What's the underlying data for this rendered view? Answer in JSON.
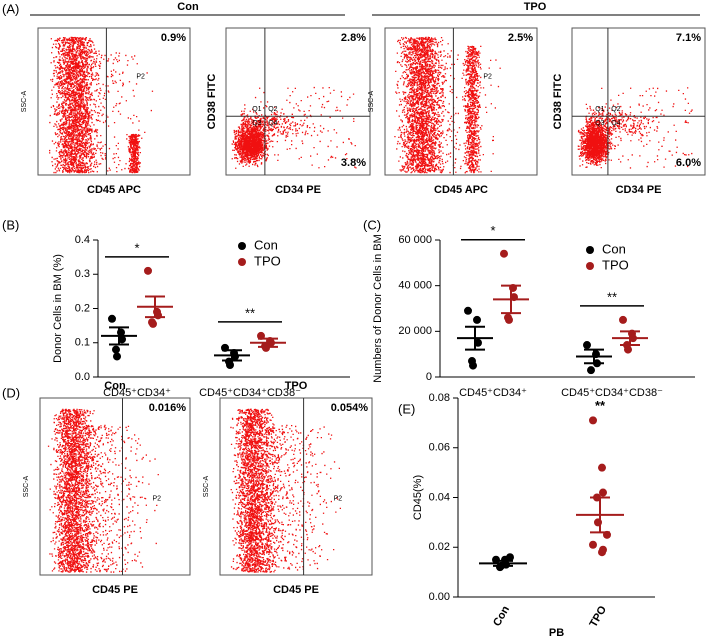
{
  "panel_labels": [
    "(A)",
    "(B)",
    "(C)",
    "(D)",
    "(E)"
  ],
  "panel_a": {
    "groups": [
      "Con",
      "TPO"
    ],
    "plots": [
      {
        "x_label": "CD45 APC",
        "y_label": "SSC-A",
        "gate": "P2",
        "percents": [
          "0.9%"
        ]
      },
      {
        "x_label": "CD34 PE",
        "y_label": "CD38 FITC",
        "quadrants": [
          "Q1",
          "Q2",
          "Q3",
          "Q4"
        ],
        "percents": [
          "2.8%",
          "3.8%"
        ]
      },
      {
        "x_label": "CD45 APC",
        "y_label": "SSC-A",
        "gate": "P2",
        "percents": [
          "2.5%"
        ]
      },
      {
        "x_label": "CD34 PE",
        "y_label": "CD38 FITC",
        "quadrants": [
          "Q1",
          "Q2",
          "Q3",
          "Q4"
        ],
        "percents": [
          "7.1%",
          "6.0%"
        ]
      }
    ]
  },
  "panel_d": {
    "plots": [
      {
        "title": "Con",
        "x_label": "CD45 PE",
        "y_label": "SSC-A",
        "gate": "P2",
        "percents": [
          "0.016%"
        ]
      },
      {
        "title": "TPO",
        "x_label": "CD45 PE",
        "y_label": "SSC-A",
        "gate": "P2",
        "percents": [
          "0.054%"
        ]
      }
    ]
  },
  "chart_data": [
    {
      "type": "dot",
      "y_label": "Donor Cells in BM (%)",
      "categories": [
        "CD45⁺CD34⁺",
        "CD45⁺CD34⁺CD38⁻"
      ],
      "series": [
        {
          "name": "Con",
          "color": "#000000",
          "values": [
            0.12,
            0.063
          ],
          "errors": [
            0.025,
            0.015
          ],
          "points": [
            [
              0.17,
              0.13,
              0.11,
              0.08,
              0.06
            ],
            [
              0.085,
              0.07,
              0.06,
              0.045,
              0.035
            ]
          ]
        },
        {
          "name": "TPO",
          "color": "#a51c1c",
          "values": [
            0.205,
            0.1
          ],
          "errors": [
            0.03,
            0.012
          ],
          "points": [
            [
              0.31,
              0.19,
              0.18,
              0.16,
              0.155
            ],
            [
              0.12,
              0.105,
              0.1,
              0.09,
              0.085
            ]
          ]
        }
      ],
      "annotations": [
        "*",
        "**"
      ],
      "ylim": [
        0,
        0.4
      ],
      "yticks": [
        {
          "value": 0,
          "label": "0.0"
        },
        0.1,
        0.2,
        0.3,
        0.4
      ],
      "legend": true
    },
    {
      "type": "dot",
      "y_label": "Numbers of Donor Cells in BM",
      "categories": [
        "CD45⁺CD34⁺",
        "CD45⁺CD34⁺CD38⁻"
      ],
      "series": [
        {
          "name": "Con",
          "color": "#000000",
          "values": [
            17000,
            9000
          ],
          "errors": [
            5000,
            3000
          ],
          "points": [
            [
              29000,
              25000,
              15000,
              7000,
              5000
            ],
            [
              14000,
              10000,
              6000,
              3000
            ]
          ]
        },
        {
          "name": "TPO",
          "color": "#a51c1c",
          "values": [
            34000,
            17000
          ],
          "errors": [
            6000,
            3000
          ],
          "points": [
            [
              54000,
              39000,
              35000,
              26000,
              25000
            ],
            [
              25000,
              19000,
              17000,
              14000,
              12000
            ]
          ]
        }
      ],
      "annotations": [
        "*",
        "**"
      ],
      "ylim": [
        0,
        60000
      ],
      "yticks": [
        0,
        {
          "value": 20000,
          "label": "20 000"
        },
        {
          "value": 40000,
          "label": "40 000"
        },
        {
          "value": 60000,
          "label": "60 000"
        }
      ],
      "legend": true
    },
    {
      "type": "dot",
      "y_label": "CD45(%)",
      "x_label": "PB",
      "categories": [
        "Con",
        "TPO"
      ],
      "colors": [
        "#000000",
        "#a51c1c"
      ],
      "values": [
        0.0135,
        0.033
      ],
      "errors": [
        0.001,
        0.007
      ],
      "points": [
        [
          0.015,
          0.015,
          0.013,
          0.012,
          0.0125,
          0.016
        ],
        [
          0.071,
          0.052,
          0.042,
          0.04,
          0.03,
          0.025,
          0.021,
          0.018,
          0.019
        ]
      ],
      "annotations": [
        null,
        "**"
      ],
      "ylim": [
        0,
        0.08
      ],
      "yticks": [
        {
          "value": 0,
          "label": "0.00"
        },
        0.02,
        0.04,
        0.06,
        0.08
      ]
    }
  ]
}
